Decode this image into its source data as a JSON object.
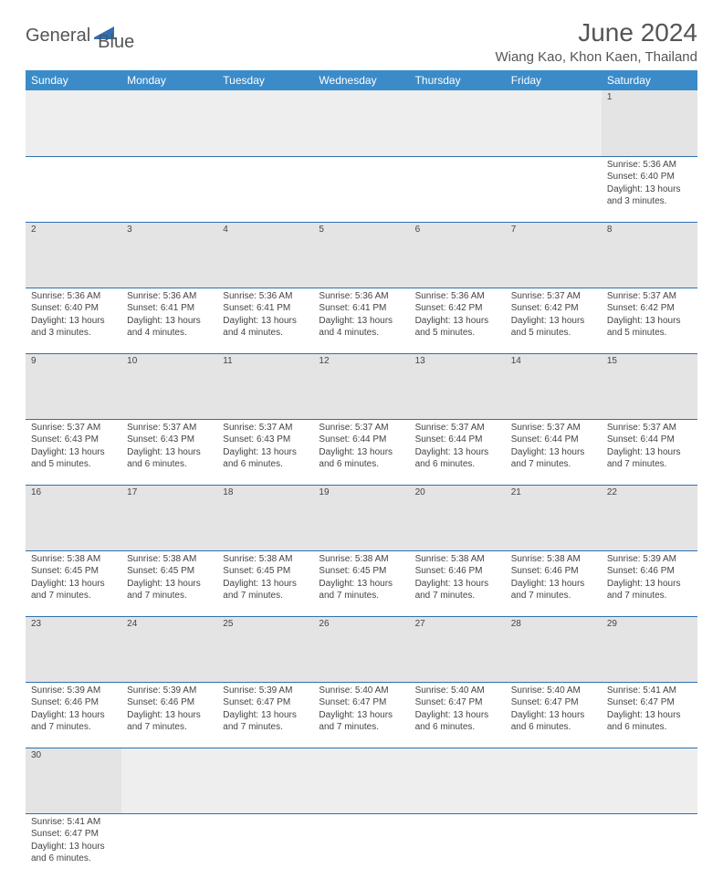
{
  "brand": {
    "word1": "General",
    "word2": "Blue"
  },
  "title": "June 2024",
  "location": "Wiang Kao, Khon Kaen, Thailand",
  "colors": {
    "header_bg": "#3b8bc9",
    "header_text": "#ffffff",
    "daynum_bg": "#e4e4e4",
    "cell_border": "#2f6fb2",
    "body_text": "#444444",
    "title_text": "#555555",
    "empty_bg": "#eeeeee"
  },
  "typography": {
    "title_fontsize": 28,
    "location_fontsize": 15,
    "header_fontsize": 12,
    "daynum_fontsize": 11,
    "cell_fontsize": 10
  },
  "day_headers": [
    "Sunday",
    "Monday",
    "Tuesday",
    "Wednesday",
    "Thursday",
    "Friday",
    "Saturday"
  ],
  "weeks": [
    [
      null,
      null,
      null,
      null,
      null,
      null,
      {
        "n": "1",
        "sr": "Sunrise: 5:36 AM",
        "ss": "Sunset: 6:40 PM",
        "dl": "Daylight: 13 hours and 3 minutes."
      }
    ],
    [
      {
        "n": "2",
        "sr": "Sunrise: 5:36 AM",
        "ss": "Sunset: 6:40 PM",
        "dl": "Daylight: 13 hours and 3 minutes."
      },
      {
        "n": "3",
        "sr": "Sunrise: 5:36 AM",
        "ss": "Sunset: 6:41 PM",
        "dl": "Daylight: 13 hours and 4 minutes."
      },
      {
        "n": "4",
        "sr": "Sunrise: 5:36 AM",
        "ss": "Sunset: 6:41 PM",
        "dl": "Daylight: 13 hours and 4 minutes."
      },
      {
        "n": "5",
        "sr": "Sunrise: 5:36 AM",
        "ss": "Sunset: 6:41 PM",
        "dl": "Daylight: 13 hours and 4 minutes."
      },
      {
        "n": "6",
        "sr": "Sunrise: 5:36 AM",
        "ss": "Sunset: 6:42 PM",
        "dl": "Daylight: 13 hours and 5 minutes."
      },
      {
        "n": "7",
        "sr": "Sunrise: 5:37 AM",
        "ss": "Sunset: 6:42 PM",
        "dl": "Daylight: 13 hours and 5 minutes."
      },
      {
        "n": "8",
        "sr": "Sunrise: 5:37 AM",
        "ss": "Sunset: 6:42 PM",
        "dl": "Daylight: 13 hours and 5 minutes."
      }
    ],
    [
      {
        "n": "9",
        "sr": "Sunrise: 5:37 AM",
        "ss": "Sunset: 6:43 PM",
        "dl": "Daylight: 13 hours and 5 minutes."
      },
      {
        "n": "10",
        "sr": "Sunrise: 5:37 AM",
        "ss": "Sunset: 6:43 PM",
        "dl": "Daylight: 13 hours and 6 minutes."
      },
      {
        "n": "11",
        "sr": "Sunrise: 5:37 AM",
        "ss": "Sunset: 6:43 PM",
        "dl": "Daylight: 13 hours and 6 minutes."
      },
      {
        "n": "12",
        "sr": "Sunrise: 5:37 AM",
        "ss": "Sunset: 6:44 PM",
        "dl": "Daylight: 13 hours and 6 minutes."
      },
      {
        "n": "13",
        "sr": "Sunrise: 5:37 AM",
        "ss": "Sunset: 6:44 PM",
        "dl": "Daylight: 13 hours and 6 minutes."
      },
      {
        "n": "14",
        "sr": "Sunrise: 5:37 AM",
        "ss": "Sunset: 6:44 PM",
        "dl": "Daylight: 13 hours and 7 minutes."
      },
      {
        "n": "15",
        "sr": "Sunrise: 5:37 AM",
        "ss": "Sunset: 6:44 PM",
        "dl": "Daylight: 13 hours and 7 minutes."
      }
    ],
    [
      {
        "n": "16",
        "sr": "Sunrise: 5:38 AM",
        "ss": "Sunset: 6:45 PM",
        "dl": "Daylight: 13 hours and 7 minutes."
      },
      {
        "n": "17",
        "sr": "Sunrise: 5:38 AM",
        "ss": "Sunset: 6:45 PM",
        "dl": "Daylight: 13 hours and 7 minutes."
      },
      {
        "n": "18",
        "sr": "Sunrise: 5:38 AM",
        "ss": "Sunset: 6:45 PM",
        "dl": "Daylight: 13 hours and 7 minutes."
      },
      {
        "n": "19",
        "sr": "Sunrise: 5:38 AM",
        "ss": "Sunset: 6:45 PM",
        "dl": "Daylight: 13 hours and 7 minutes."
      },
      {
        "n": "20",
        "sr": "Sunrise: 5:38 AM",
        "ss": "Sunset: 6:46 PM",
        "dl": "Daylight: 13 hours and 7 minutes."
      },
      {
        "n": "21",
        "sr": "Sunrise: 5:38 AM",
        "ss": "Sunset: 6:46 PM",
        "dl": "Daylight: 13 hours and 7 minutes."
      },
      {
        "n": "22",
        "sr": "Sunrise: 5:39 AM",
        "ss": "Sunset: 6:46 PM",
        "dl": "Daylight: 13 hours and 7 minutes."
      }
    ],
    [
      {
        "n": "23",
        "sr": "Sunrise: 5:39 AM",
        "ss": "Sunset: 6:46 PM",
        "dl": "Daylight: 13 hours and 7 minutes."
      },
      {
        "n": "24",
        "sr": "Sunrise: 5:39 AM",
        "ss": "Sunset: 6:46 PM",
        "dl": "Daylight: 13 hours and 7 minutes."
      },
      {
        "n": "25",
        "sr": "Sunrise: 5:39 AM",
        "ss": "Sunset: 6:47 PM",
        "dl": "Daylight: 13 hours and 7 minutes."
      },
      {
        "n": "26",
        "sr": "Sunrise: 5:40 AM",
        "ss": "Sunset: 6:47 PM",
        "dl": "Daylight: 13 hours and 7 minutes."
      },
      {
        "n": "27",
        "sr": "Sunrise: 5:40 AM",
        "ss": "Sunset: 6:47 PM",
        "dl": "Daylight: 13 hours and 6 minutes."
      },
      {
        "n": "28",
        "sr": "Sunrise: 5:40 AM",
        "ss": "Sunset: 6:47 PM",
        "dl": "Daylight: 13 hours and 6 minutes."
      },
      {
        "n": "29",
        "sr": "Sunrise: 5:41 AM",
        "ss": "Sunset: 6:47 PM",
        "dl": "Daylight: 13 hours and 6 minutes."
      }
    ],
    [
      {
        "n": "30",
        "sr": "Sunrise: 5:41 AM",
        "ss": "Sunset: 6:47 PM",
        "dl": "Daylight: 13 hours and 6 minutes."
      },
      null,
      null,
      null,
      null,
      null,
      null
    ]
  ]
}
